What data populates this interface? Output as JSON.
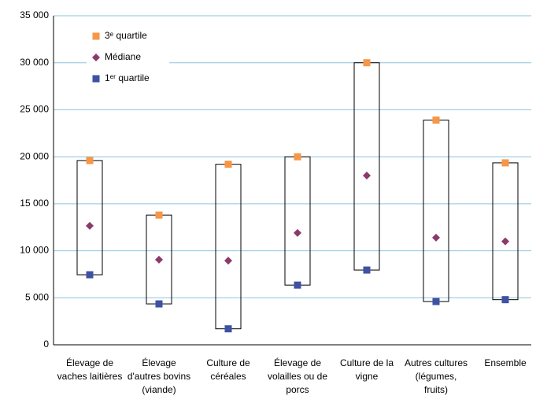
{
  "chart_data": {
    "type": "box",
    "categories": [
      "Élevage de vaches laitières",
      "Élevage d'autres bovins (viande)",
      "Culture de céréales",
      "Élevage de volailles ou de porcs",
      "Culture de la vigne",
      "Autres cultures (légumes, fruits)",
      "Ensemble"
    ],
    "series": [
      {
        "name": "3ᵉ quartile",
        "color": "#f79646",
        "marker": "square",
        "values": [
          19600,
          13800,
          19200,
          20000,
          30000,
          23900,
          19350
        ]
      },
      {
        "name": "Médiane",
        "color": "#8b3a6b",
        "marker": "diamond",
        "values": [
          12650,
          9050,
          8950,
          11900,
          18000,
          11400,
          11000
        ]
      },
      {
        "name": "1ᵉʳ quartile",
        "color": "#3f51a3",
        "marker": "square",
        "values": [
          7450,
          4350,
          1700,
          6350,
          7950,
          4600,
          4800
        ]
      }
    ],
    "ylim": [
      0,
      35000
    ],
    "yticks": [
      0,
      {
        "value": 5000,
        "label": "5 000"
      },
      {
        "value": 10000,
        "label": "10 000"
      },
      {
        "value": 15000,
        "label": "15 000"
      },
      {
        "value": 20000,
        "label": "20 000"
      },
      {
        "value": 25000,
        "label": "25 000"
      },
      {
        "value": 30000,
        "label": "30 000"
      },
      {
        "value": 35000,
        "label": "35 000"
      }
    ],
    "grid": true,
    "legend": "top-left"
  }
}
